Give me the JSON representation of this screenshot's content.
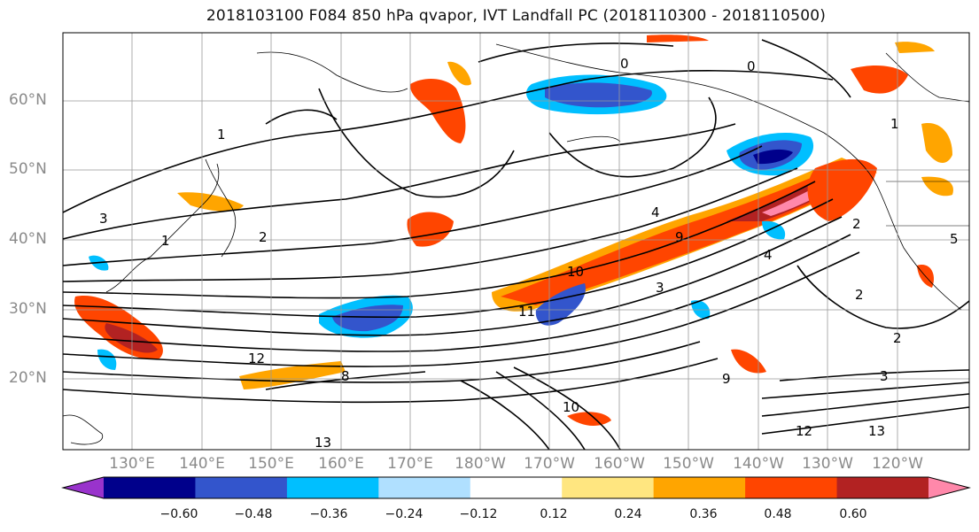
{
  "title": "2018103100 F084 850 hPa qvapor, IVT Landfall PC (2018110300 - 2018110500)",
  "lat_labels": [
    "60°N",
    "50°N",
    "40°N",
    "30°N",
    "20°N"
  ],
  "lon_labels": [
    "130°E",
    "140°E",
    "150°E",
    "160°E",
    "170°E",
    "180°W",
    "170°W",
    "160°W",
    "150°W",
    "140°W",
    "130°W",
    "120°W"
  ],
  "colorbar": {
    "colors": [
      "#9933cc",
      "#00008b",
      "#3355cc",
      "#00bfff",
      "#b0e0ff",
      "#ffffff",
      "#ffe680",
      "#ffa500",
      "#ff4500",
      "#b22222",
      "#ff88aa"
    ],
    "ticks": [
      "−0.60",
      "−0.48",
      "−0.36",
      "−0.24",
      "−0.12",
      "0.12",
      "0.24",
      "0.36",
      "0.48",
      "0.60"
    ]
  },
  "contour_labels": [
    "0",
    "0",
    "1",
    "1",
    "1",
    "2",
    "2",
    "2",
    "2",
    "3",
    "3",
    "3",
    "4",
    "4",
    "8",
    "9",
    "9",
    "10",
    "10",
    "11",
    "12",
    "12",
    "13",
    "13",
    "5"
  ]
}
